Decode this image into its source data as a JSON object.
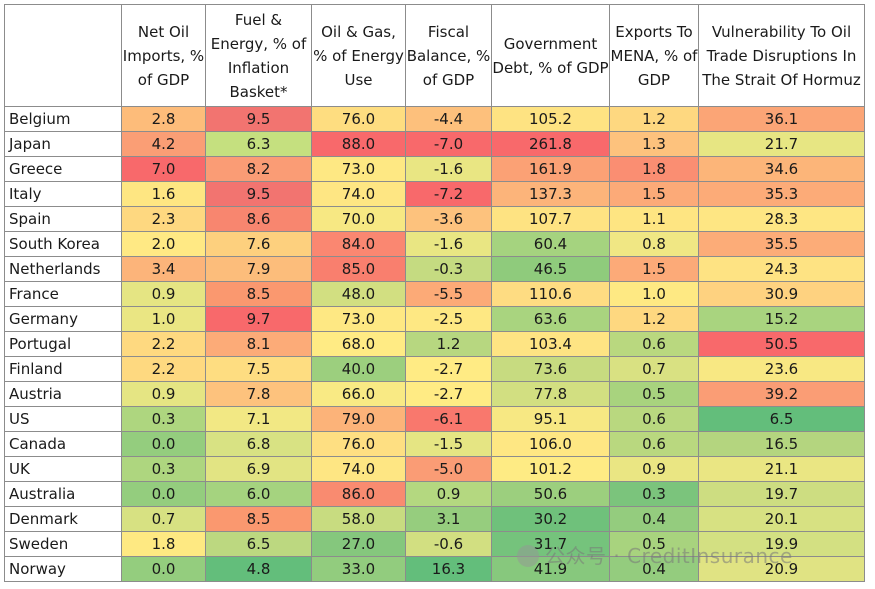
{
  "chart_data": {
    "type": "heatmap",
    "columns": [
      "Net Oil Imports, % of GDP",
      "Fuel & Energy, % of Inflation Basket*",
      "Oil & Gas, % of Energy Use",
      "Fiscal Balance, % of GDP",
      "Government Debt, % of GDP",
      "Exports To MENA, % of GDP",
      "Vulnerability To Oil Trade Disruptions In The Strait Of Hormuz"
    ],
    "rows": [
      {
        "country": "Belgium",
        "values": [
          "2.8",
          "9.5",
          "76.0",
          "-4.4",
          "105.2",
          "1.2",
          "36.1"
        ]
      },
      {
        "country": "Japan",
        "values": [
          "4.2",
          "6.3",
          "88.0",
          "-7.0",
          "261.8",
          "1.3",
          "21.7"
        ]
      },
      {
        "country": "Greece",
        "values": [
          "7.0",
          "8.2",
          "73.0",
          "-1.6",
          "161.9",
          "1.8",
          "34.6"
        ]
      },
      {
        "country": "Italy",
        "values": [
          "1.6",
          "9.5",
          "74.0",
          "-7.2",
          "137.3",
          "1.5",
          "35.3"
        ]
      },
      {
        "country": "Spain",
        "values": [
          "2.3",
          "8.6",
          "70.0",
          "-3.6",
          "107.7",
          "1.1",
          "28.3"
        ]
      },
      {
        "country": "South Korea",
        "values": [
          "2.0",
          "7.6",
          "84.0",
          "-1.6",
          "60.4",
          "0.8",
          "35.5"
        ]
      },
      {
        "country": "Netherlands",
        "values": [
          "3.4",
          "7.9",
          "85.0",
          "-0.3",
          "46.5",
          "1.5",
          "24.3"
        ]
      },
      {
        "country": "France",
        "values": [
          "0.9",
          "8.5",
          "48.0",
          "-5.5",
          "110.6",
          "1.0",
          "30.9"
        ]
      },
      {
        "country": "Germany",
        "values": [
          "1.0",
          "9.7",
          "73.0",
          "-2.5",
          "63.6",
          "1.2",
          "15.2"
        ]
      },
      {
        "country": "Portugal",
        "values": [
          "2.2",
          "8.1",
          "68.0",
          "1.2",
          "103.4",
          "0.6",
          "50.5"
        ]
      },
      {
        "country": "Finland",
        "values": [
          "2.2",
          "7.5",
          "40.0",
          "-2.7",
          "73.6",
          "0.7",
          "23.6"
        ]
      },
      {
        "country": "Austria",
        "values": [
          "0.9",
          "7.8",
          "66.0",
          "-2.7",
          "77.8",
          "0.5",
          "39.2"
        ]
      },
      {
        "country": "US",
        "values": [
          "0.3",
          "7.1",
          "79.0",
          "-6.1",
          "95.1",
          "0.6",
          "6.5"
        ]
      },
      {
        "country": "Canada",
        "values": [
          "0.0",
          "6.8",
          "76.0",
          "-1.5",
          "106.0",
          "0.6",
          "16.5"
        ]
      },
      {
        "country": "UK",
        "values": [
          "0.3",
          "6.9",
          "74.0",
          "-5.0",
          "101.2",
          "0.9",
          "21.1"
        ]
      },
      {
        "country": "Australia",
        "values": [
          "0.0",
          "6.0",
          "86.0",
          "0.9",
          "50.6",
          "0.3",
          "19.7"
        ]
      },
      {
        "country": "Denmark",
        "values": [
          "0.7",
          "8.5",
          "58.0",
          "3.1",
          "30.2",
          "0.4",
          "20.1"
        ]
      },
      {
        "country": "Sweden",
        "values": [
          "1.8",
          "6.5",
          "27.0",
          "-0.6",
          "31.7",
          "0.5",
          "19.9"
        ]
      },
      {
        "country": "Norway",
        "values": [
          "0.0",
          "4.8",
          "33.0",
          "16.3",
          "41.9",
          "0.4",
          "20.9"
        ]
      }
    ],
    "colors": [
      [
        "#fdbc7a",
        "#f27470",
        "#fedd80",
        "#fdc07c",
        "#fee382",
        "#fed880",
        "#fba576"
      ],
      [
        "#fa9e75",
        "#c5e07f",
        "#f8696b",
        "#f8696b",
        "#f8696b",
        "#fdc27d",
        "#e7e683"
      ],
      [
        "#f8696b",
        "#fa9c75",
        "#fee883",
        "#e9e683",
        "#fba175",
        "#fa8e72",
        "#fcb579"
      ],
      [
        "#fee682",
        "#f27470",
        "#fee683",
        "#f8696b",
        "#fcb47a",
        "#fcaa78",
        "#fcab78"
      ],
      [
        "#fed880",
        "#f8866f",
        "#f7e883",
        "#fdc27d",
        "#fee382",
        "#fee582",
        "#fee683"
      ],
      [
        "#ffe984",
        "#fdd07e",
        "#fa8771",
        "#e9e683",
        "#a5d37f",
        "#f0e784",
        "#fcac78"
      ],
      [
        "#fcb47a",
        "#fcbd7b",
        "#f97f6e",
        "#c5db81",
        "#8fcb7c",
        "#fcaa78",
        "#fee383"
      ],
      [
        "#e5e583",
        "#fa986f",
        "#d2df81",
        "#fcaa77",
        "#fedc82",
        "#fee983",
        "#fed280"
      ],
      [
        "#eae683",
        "#f8696b",
        "#fee883",
        "#fee883",
        "#a9d47f",
        "#fed880",
        "#a9d47f"
      ],
      [
        "#fed980",
        "#fcab78",
        "#ffeb84",
        "#b7d780",
        "#fee483",
        "#b9d87f",
        "#f8696b"
      ],
      [
        "#fed980",
        "#fedd81",
        "#9ccf7e",
        "#ffeb84",
        "#c7db80",
        "#d9e182",
        "#f8e883"
      ],
      [
        "#e5e583",
        "#fdc27d",
        "#f9ea84",
        "#ffeb84",
        "#d2df81",
        "#a8d37e",
        "#fa9d75"
      ],
      [
        "#aed67f",
        "#f2e884",
        "#fcb379",
        "#f9786d",
        "#f7e883",
        "#b9d87f",
        "#63be7b"
      ],
      [
        "#94cd7e",
        "#d8e283",
        "#fedf82",
        "#e5e583",
        "#fee783",
        "#b9d87f",
        "#b4d57f"
      ],
      [
        "#aed67f",
        "#e2e483",
        "#fee683",
        "#fa9c75",
        "#feeb84",
        "#eae683",
        "#eae683"
      ],
      [
        "#94cd7e",
        "#a5d37f",
        "#f98b70",
        "#b4d880",
        "#9ccf7e",
        "#7bc47c",
        "#cddd81"
      ],
      [
        "#d7e182",
        "#fa986f",
        "#c8dc80",
        "#96cd7e",
        "#6fc17b",
        "#94cc7e",
        "#d7e182"
      ],
      [
        "#fee982",
        "#bcd880",
        "#85c77d",
        "#d2df81",
        "#75c37c",
        "#a8d37e",
        "#d3e082"
      ],
      [
        "#94cd7e",
        "#63be7b",
        "#92cc7e",
        "#63be7b",
        "#87c87d",
        "#94cc7e",
        "#e0e383"
      ]
    ]
  },
  "watermark": {
    "text": "公众号 · CreditInsurance",
    "icon": "wechat-icon"
  }
}
